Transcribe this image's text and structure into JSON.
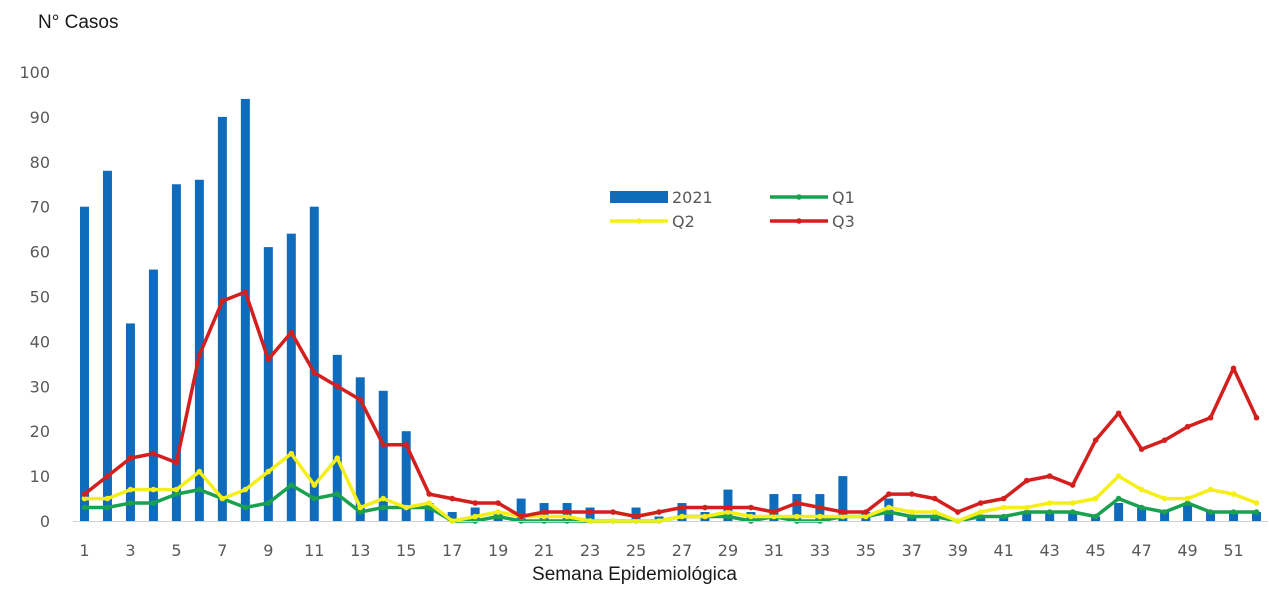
{
  "chart_data": {
    "type": "bar",
    "ylabel": "N° Casos",
    "xlabel": "Semana Epidemiológica",
    "ylim": [
      0,
      100
    ],
    "yticks": [
      0,
      10,
      20,
      30,
      40,
      50,
      60,
      70,
      80,
      90,
      100
    ],
    "x": [
      1,
      2,
      3,
      4,
      5,
      6,
      7,
      8,
      9,
      10,
      11,
      12,
      13,
      14,
      15,
      16,
      17,
      18,
      19,
      20,
      21,
      22,
      23,
      24,
      25,
      26,
      27,
      28,
      29,
      30,
      31,
      32,
      33,
      34,
      35,
      36,
      37,
      38,
      39,
      40,
      41,
      42,
      43,
      44,
      45,
      46,
      47,
      48,
      49,
      50,
      51,
      52
    ],
    "xtick_labels": [
      "1",
      "3",
      "5",
      "7",
      "9",
      "11",
      "13",
      "15",
      "17",
      "19",
      "21",
      "23",
      "25",
      "27",
      "29",
      "31",
      "33",
      "35",
      "37",
      "39",
      "41",
      "43",
      "45",
      "47",
      "49",
      "51"
    ],
    "grid": false,
    "legend_position": "center-top",
    "bars": {
      "name": "2021",
      "color": "#0f6cbd",
      "values": [
        70,
        78,
        44,
        56,
        75,
        76,
        90,
        94,
        61,
        64,
        70,
        37,
        32,
        29,
        20,
        4,
        2,
        3,
        2,
        5,
        4,
        4,
        3,
        0,
        3,
        1,
        4,
        2,
        7,
        2,
        6,
        6,
        6,
        10,
        2,
        5,
        1,
        1,
        0,
        1,
        1,
        2,
        2,
        2,
        1,
        4,
        3,
        2,
        4,
        2,
        2,
        2
      ]
    },
    "lines": [
      {
        "name": "Q1",
        "color": "#1aa150",
        "values": [
          3,
          3,
          4,
          4,
          6,
          7,
          5,
          3,
          4,
          8,
          5,
          6,
          2,
          3,
          3,
          3,
          0,
          0,
          1,
          0,
          0,
          0,
          0,
          0,
          0,
          0,
          1,
          1,
          1,
          0,
          1,
          0,
          0,
          1,
          1,
          2,
          1,
          1,
          0,
          1,
          1,
          2,
          2,
          2,
          1,
          5,
          3,
          2,
          4,
          2,
          2,
          2
        ]
      },
      {
        "name": "Q2",
        "color": "#f4ef18",
        "values": [
          5,
          5,
          7,
          7,
          7,
          11,
          5,
          7,
          11,
          15,
          8,
          14,
          3,
          5,
          3,
          4,
          0,
          1,
          2,
          1,
          1,
          1,
          0,
          0,
          0,
          0,
          1,
          1,
          2,
          1,
          1,
          1,
          1,
          1,
          1,
          3,
          2,
          2,
          0,
          2,
          3,
          3,
          4,
          4,
          5,
          10,
          7,
          5,
          5,
          7,
          6,
          4
        ]
      },
      {
        "name": "Q3",
        "color": "#d41f1f",
        "values": [
          6,
          10,
          14,
          15,
          13,
          37,
          49,
          51,
          36,
          42,
          33,
          30,
          27,
          17,
          17,
          6,
          5,
          4,
          4,
          1,
          2,
          2,
          2,
          2,
          1,
          2,
          3,
          3,
          3,
          3,
          2,
          4,
          3,
          2,
          2,
          6,
          6,
          5,
          2,
          4,
          5,
          9,
          10,
          8,
          18,
          24,
          16,
          18,
          21,
          23,
          34,
          23
        ]
      }
    ]
  }
}
